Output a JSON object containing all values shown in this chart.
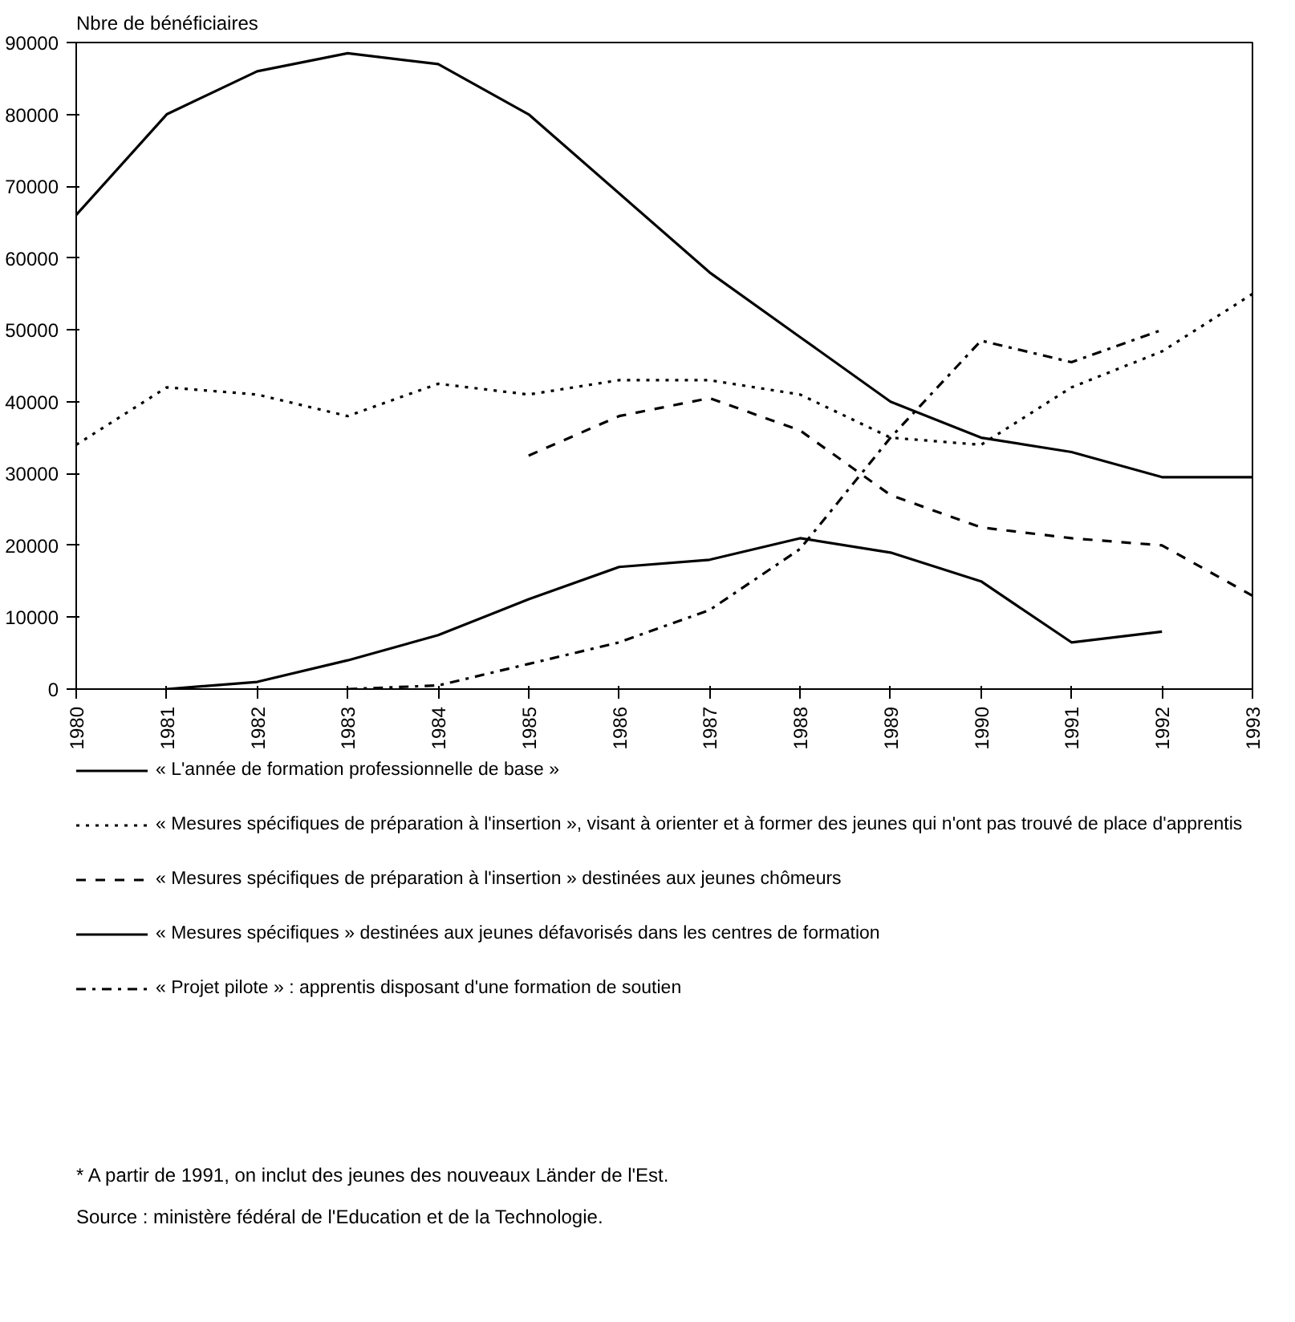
{
  "chart_data": {
    "type": "line",
    "ylabel": "Nbre de bénéficiaires",
    "x": [
      1980,
      1981,
      1982,
      1983,
      1984,
      1985,
      1986,
      1987,
      1988,
      1989,
      1990,
      1991,
      1992,
      1993
    ],
    "series": [
      {
        "name": "« L'année de formation professionnelle de base »",
        "color": "#000000",
        "line_style": "solid",
        "values": [
          66000,
          80000,
          86000,
          88500,
          87000,
          80000,
          69000,
          58000,
          49000,
          40000,
          35000,
          33000,
          29500,
          29500
        ]
      },
      {
        "name": "« Mesures spécifiques de préparation à l'insertion », visant à orienter et à former des jeunes qui n'ont pas trouvé de place d'apprentis",
        "color": "#000000",
        "line_style": "dotted",
        "values": [
          34000,
          42000,
          41000,
          38000,
          42500,
          41000,
          43000,
          43000,
          41000,
          35000,
          34000,
          42000,
          47000,
          55000
        ]
      },
      {
        "name": "« Mesures spécifiques de préparation à l'insertion » destinées aux jeunes chômeurs",
        "color": "#000000",
        "line_style": "dashed",
        "values": [
          null,
          null,
          null,
          null,
          null,
          32500,
          38000,
          40500,
          36000,
          27000,
          22500,
          21000,
          20000,
          13000
        ]
      },
      {
        "name": "« Mesures spécifiques » destinées aux jeunes défavorisés dans les centres de formation",
        "color": "#000000",
        "line_style": "solid",
        "values": [
          null,
          0,
          1000,
          4000,
          7500,
          12500,
          17000,
          18000,
          21000,
          19000,
          15000,
          6500,
          8000,
          null
        ]
      },
      {
        "name": "« Projet pilote » : apprentis disposant d'une formation de soutien",
        "color": "#000000",
        "line_style": "dashdot",
        "values": [
          null,
          null,
          null,
          0,
          500,
          3500,
          6500,
          11000,
          19500,
          35000,
          48500,
          45500,
          50000,
          null
        ]
      }
    ],
    "xlim": [
      1980,
      1993
    ],
    "xticks": [
      1980,
      1981,
      1982,
      1983,
      1984,
      1985,
      1986,
      1987,
      1988,
      1989,
      1990,
      1991,
      1992,
      1993
    ],
    "ylim": [
      0,
      90000
    ],
    "yticks": [
      0,
      10000,
      20000,
      30000,
      40000,
      50000,
      60000,
      70000,
      80000,
      90000
    ],
    "grid": false,
    "legend": "bottom",
    "annotations": [
      "* A partir de 1991, on inclut des jeunes des nouveaux Länder de l'Est.",
      "Source : ministère fédéral de l'Education et de la Technologie."
    ]
  }
}
